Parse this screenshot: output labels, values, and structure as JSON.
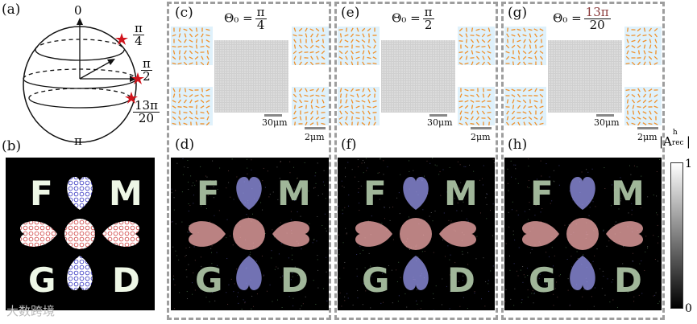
{
  "panels": {
    "a": "(a)",
    "b": "(b)",
    "c": "(c)",
    "d": "(d)",
    "e": "(e)",
    "f": "(f)",
    "g": "(g)",
    "h": "(h)"
  },
  "sphere": {
    "top": "0",
    "bottom": "π",
    "pi4_num": "π",
    "pi4_den": "4",
    "pi2_num": "π",
    "pi2_den": "2",
    "pi1320_num": "13π",
    "pi1320_den": "20"
  },
  "thetas": [
    {
      "prefix": "Θ₀ =",
      "num": "π",
      "den": "4"
    },
    {
      "prefix": "Θ₀ =",
      "num": "π",
      "den": "2"
    },
    {
      "prefix": "Θ₀ =",
      "num": "13π",
      "den": "20"
    }
  ],
  "scale": {
    "big": "30μm",
    "small": "2μm"
  },
  "letters": [
    "F",
    "M",
    "G",
    "D"
  ],
  "colorbar": {
    "title": "|A",
    "title_sup": "h",
    "title_sub": "rec",
    "title_end": "|",
    "max": "1",
    "min": "0"
  },
  "watermark": "大数跨境",
  "colors": {
    "heart_red": "#e8a3a3",
    "heart_blue": "#8f8fe0",
    "letter_green": "#bcd6b4",
    "star": "#d0141c",
    "dash": "#9e9e9e"
  }
}
